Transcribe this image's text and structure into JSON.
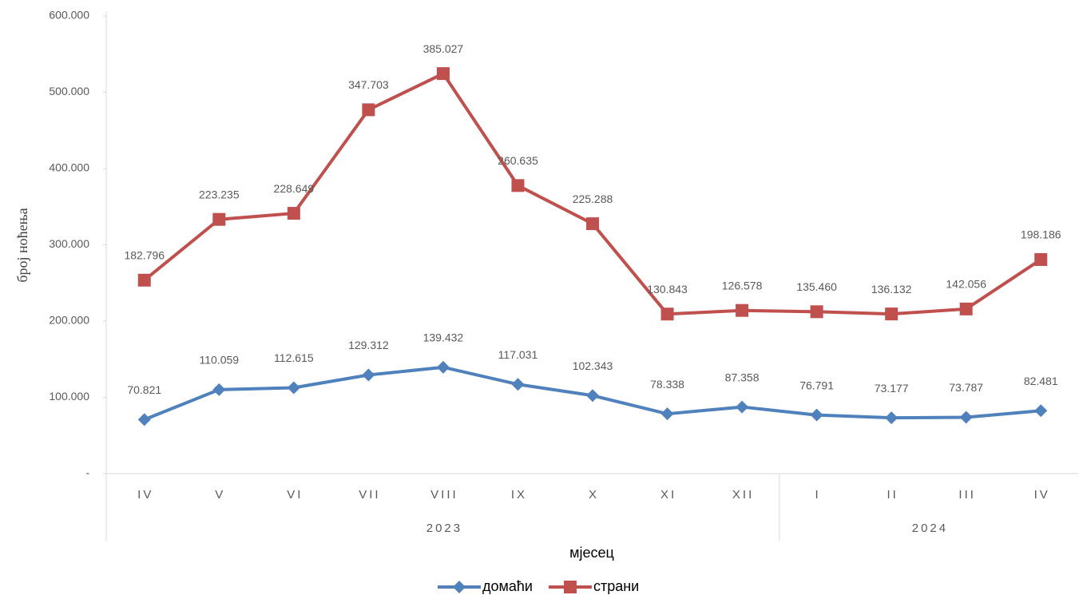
{
  "chart_data": {
    "type": "stacked_line",
    "y_label": "број ноћења",
    "x_label": "мјесец",
    "categories": [
      "IV",
      "V",
      "VI",
      "VII",
      "VIII",
      "IX",
      "X",
      "XI",
      "XII",
      "I",
      "II",
      "III",
      "IV"
    ],
    "x_groups": [
      {
        "label": "2023",
        "span": 9
      },
      {
        "label": "2024",
        "span": 4
      }
    ],
    "series": [
      {
        "name": "домаћи",
        "color": "#4f81bd",
        "marker": "diamond",
        "values": [
          70821,
          110059,
          112615,
          129312,
          139432,
          117031,
          102343,
          78338,
          87358,
          76791,
          73177,
          73787,
          82481
        ],
        "value_labels": [
          "70.821",
          "110.059",
          "112.615",
          "129.312",
          "139.432",
          "117.031",
          "102.343",
          "78.338",
          "87.358",
          "76.791",
          "73.177",
          "73.787",
          "82.481"
        ]
      },
      {
        "name": "страни",
        "color": "#c0504d",
        "marker": "square",
        "values": [
          182796,
          223235,
          228649,
          347703,
          385027,
          260635,
          225288,
          130843,
          126578,
          135460,
          136132,
          142056,
          198186
        ],
        "value_labels": [
          "182.796",
          "223.235",
          "228.649",
          "347.703",
          "385.027",
          "260.635",
          "225.288",
          "130.843",
          "126.578",
          "135.460",
          "136.132",
          "142.056",
          "198.186"
        ]
      }
    ],
    "ylim": [
      0,
      600000
    ],
    "yticks": [
      {
        "value": 0,
        "label": "-"
      },
      {
        "value": 100000,
        "label": "100.000"
      },
      {
        "value": 200000,
        "label": "200.000"
      },
      {
        "value": 300000,
        "label": "300.000"
      },
      {
        "value": 400000,
        "label": "400.000"
      },
      {
        "value": 500000,
        "label": "500.000"
      },
      {
        "value": 600000,
        "label": "600.000"
      }
    ],
    "legend": "bottom"
  }
}
